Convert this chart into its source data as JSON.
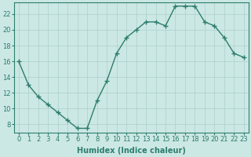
{
  "x": [
    0,
    1,
    2,
    3,
    4,
    5,
    6,
    7,
    8,
    9,
    10,
    11,
    12,
    13,
    14,
    15,
    16,
    17,
    18,
    19,
    20,
    21,
    22,
    23
  ],
  "y": [
    16,
    13,
    11.5,
    10.5,
    9.5,
    8.5,
    7.5,
    7.5,
    11,
    13.5,
    17,
    19,
    20,
    21,
    21,
    20.5,
    23,
    23,
    23,
    21,
    20.5,
    19,
    17,
    16.5
  ],
  "line_color": "#2d7d6e",
  "marker": "+",
  "marker_size": 4,
  "marker_lw": 1.0,
  "bg_color": "#cce8e4",
  "grid_color": "#aacfcc",
  "xlabel": "Humidex (Indice chaleur)",
  "xlim": [
    -0.5,
    23.5
  ],
  "ylim": [
    7,
    23.5
  ],
  "yticks": [
    8,
    10,
    12,
    14,
    16,
    18,
    20,
    22
  ],
  "xticks": [
    0,
    1,
    2,
    3,
    4,
    5,
    6,
    7,
    8,
    9,
    10,
    11,
    12,
    13,
    14,
    15,
    16,
    17,
    18,
    19,
    20,
    21,
    22,
    23
  ],
  "tick_color": "#2d7d6e",
  "font_size": 6,
  "xlabel_size": 7,
  "line_width": 1.0
}
